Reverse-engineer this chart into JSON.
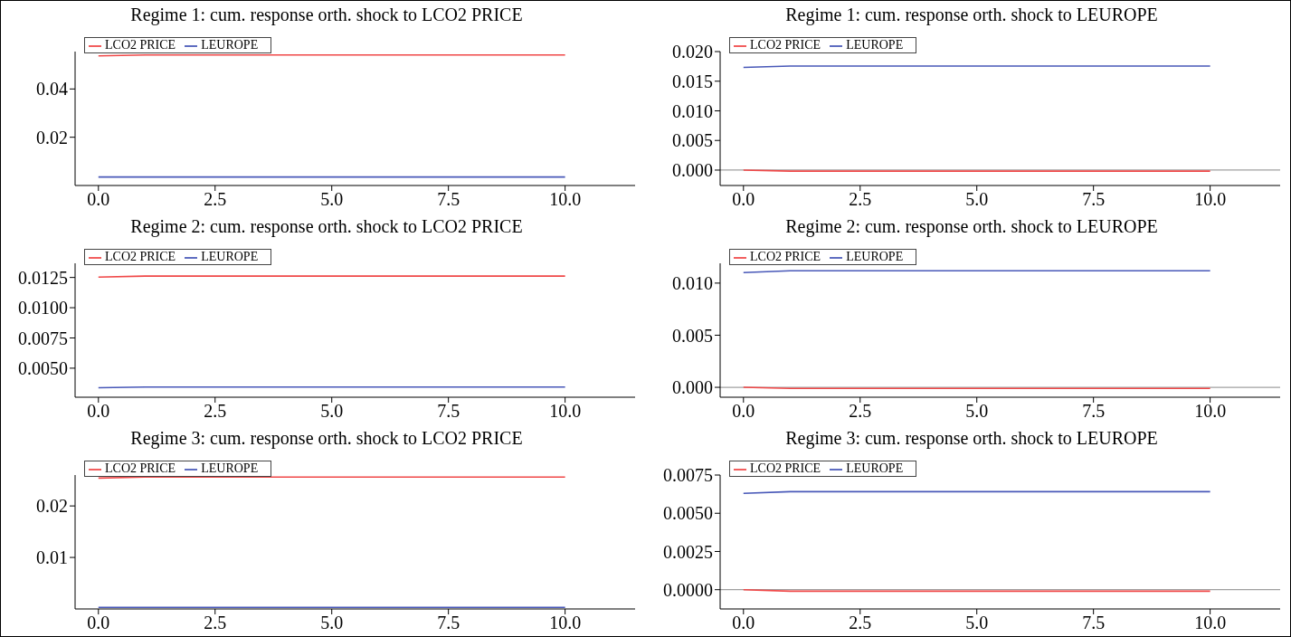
{
  "chart_data": [
    {
      "type": "line",
      "title": "Regime 1: cum. response orth. shock to LCO2 PRICE",
      "x": [
        0,
        1,
        2,
        3,
        4,
        5,
        6,
        7,
        8,
        9,
        10
      ],
      "series": [
        {
          "name": "LCO2 PRICE",
          "color": "#f04848",
          "values": [
            0.0537,
            0.0541,
            0.0541,
            0.0541,
            0.0541,
            0.0541,
            0.0541,
            0.0541,
            0.0541,
            0.0541,
            0.0541
          ]
        },
        {
          "name": "LEUROPE",
          "color": "#4858b8",
          "values": [
            0.0035,
            0.0035,
            0.0035,
            0.0035,
            0.0035,
            0.0035,
            0.0035,
            0.0035,
            0.0035,
            0.0035,
            0.0035
          ]
        }
      ],
      "xlim": [
        -0.5,
        11.5
      ],
      "xticks": [
        {
          "value": 0,
          "label": "0.0"
        },
        {
          "value": 2.5,
          "label": "2.5"
        },
        {
          "value": 5,
          "label": "5.0"
        },
        {
          "value": 7.5,
          "label": "7.5"
        },
        {
          "value": 10,
          "label": "10.0"
        }
      ],
      "ylim": [
        0,
        0.0555
      ],
      "yticks": [
        0.02,
        0.04
      ],
      "legend": "top left",
      "grid": false
    },
    {
      "type": "line",
      "title": "Regime 1: cum. response orth. shock to LEUROPE",
      "x": [
        0,
        1,
        2,
        3,
        4,
        5,
        6,
        7,
        8,
        9,
        10
      ],
      "series": [
        {
          "name": "LCO2 PRICE",
          "color": "#f04848",
          "values": [
            0,
            -0.00017,
            -0.00017,
            -0.00017,
            -0.00017,
            -0.00017,
            -0.00017,
            -0.00017,
            -0.00017,
            -0.00017,
            -0.00017
          ]
        },
        {
          "name": "LEUROPE",
          "color": "#4858b8",
          "values": [
            0.01733,
            0.01756,
            0.01756,
            0.01756,
            0.01756,
            0.01756,
            0.01756,
            0.01756,
            0.01756,
            0.01756,
            0.01756
          ]
        }
      ],
      "xlim": [
        -0.5,
        11.5
      ],
      "xticks": [
        {
          "value": 0,
          "label": "0.0"
        },
        {
          "value": 2.5,
          "label": "2.5"
        },
        {
          "value": 5,
          "label": "5.0"
        },
        {
          "value": 7.5,
          "label": "7.5"
        },
        {
          "value": 10,
          "label": "10.0"
        }
      ],
      "ylim": [
        -0.0026,
        0.02
      ],
      "yticks": [
        {
          "value": 0,
          "label": "0.000"
        },
        {
          "value": 0.005,
          "label": "0.005"
        },
        {
          "value": 0.01,
          "label": "0.010"
        },
        {
          "value": 0.015,
          "label": "0.015"
        },
        {
          "value": 0.02,
          "label": "0.020"
        }
      ],
      "ref_lines": [
        {
          "axis": "y",
          "value": 0,
          "color": "#a0a0a0"
        }
      ],
      "legend": "top left",
      "grid": false
    },
    {
      "type": "line",
      "title": "Regime 2: cum. response orth. shock to LCO2 PRICE",
      "x": [
        0,
        1,
        2,
        3,
        4,
        5,
        6,
        7,
        8,
        9,
        10
      ],
      "series": [
        {
          "name": "LCO2 PRICE",
          "color": "#f04848",
          "values": [
            0.01253,
            0.01261,
            0.01261,
            0.01261,
            0.01261,
            0.01261,
            0.01261,
            0.01261,
            0.01261,
            0.01261,
            0.01261
          ]
        },
        {
          "name": "LEUROPE",
          "color": "#4858b8",
          "values": [
            0.00339,
            0.00344,
            0.00344,
            0.00344,
            0.00344,
            0.00344,
            0.00344,
            0.00344,
            0.00344,
            0.00344,
            0.00344
          ]
        }
      ],
      "xlim": [
        -0.5,
        11.5
      ],
      "xticks": [
        {
          "value": 0,
          "label": "0.0"
        },
        {
          "value": 2.5,
          "label": "2.5"
        },
        {
          "value": 5,
          "label": "5.0"
        },
        {
          "value": 7.5,
          "label": "7.5"
        },
        {
          "value": 10,
          "label": "10.0"
        }
      ],
      "ylim": [
        0.0026,
        0.01367
      ],
      "yticks": [
        {
          "value": 0.005,
          "label": "0.0050"
        },
        {
          "value": 0.0075,
          "label": "0.0075"
        },
        {
          "value": 0.01,
          "label": "0.0100"
        },
        {
          "value": 0.0125,
          "label": "0.0125"
        }
      ],
      "legend": "top left",
      "grid": false
    },
    {
      "type": "line",
      "title": "Regime 2: cum. response orth. shock to LEUROPE",
      "x": [
        0,
        1,
        2,
        3,
        4,
        5,
        6,
        7,
        8,
        9,
        10
      ],
      "series": [
        {
          "name": "LCO2 PRICE",
          "color": "#f04848",
          "values": [
            0,
            -0.0001,
            -0.0001,
            -0.0001,
            -0.0001,
            -0.0001,
            -0.0001,
            -0.0001,
            -0.0001,
            -0.0001,
            -0.0001
          ]
        },
        {
          "name": "LEUROPE",
          "color": "#4858b8",
          "values": [
            0.01101,
            0.01118,
            0.01118,
            0.01118,
            0.01118,
            0.01118,
            0.01118,
            0.01118,
            0.01118,
            0.01118,
            0.01118
          ]
        }
      ],
      "xlim": [
        -0.5,
        11.5
      ],
      "xticks": [
        {
          "value": 0,
          "label": "0.0"
        },
        {
          "value": 2.5,
          "label": "2.5"
        },
        {
          "value": 5,
          "label": "5.0"
        },
        {
          "value": 7.5,
          "label": "7.5"
        },
        {
          "value": 10,
          "label": "10.0"
        }
      ],
      "ylim": [
        -0.00095,
        0.0119
      ],
      "yticks": [
        {
          "value": 0,
          "label": "0.000"
        },
        {
          "value": 0.005,
          "label": "0.005"
        },
        {
          "value": 0.01,
          "label": "0.010"
        }
      ],
      "ref_lines": [
        {
          "axis": "y",
          "value": 0,
          "color": "#a0a0a0"
        }
      ],
      "legend": "top left",
      "grid": false
    },
    {
      "type": "line",
      "title": "Regime 3: cum. response orth. shock to LCO2 PRICE",
      "x": [
        0,
        1,
        2,
        3,
        4,
        5,
        6,
        7,
        8,
        9,
        10
      ],
      "series": [
        {
          "name": "LCO2 PRICE",
          "color": "#f04848",
          "values": [
            0.0254,
            0.0256,
            0.0256,
            0.0256,
            0.0256,
            0.0256,
            0.0256,
            0.0256,
            0.0256,
            0.0256,
            0.0256
          ]
        },
        {
          "name": "LEUROPE",
          "color": "#4858b8",
          "values": [
            0.0003,
            0.0003,
            0.0003,
            0.0003,
            0.0003,
            0.0003,
            0.0003,
            0.0003,
            0.0003,
            0.0003,
            0.0003
          ]
        }
      ],
      "xlim": [
        -0.5,
        11.5
      ],
      "xticks": [
        {
          "value": 0,
          "label": "0.0"
        },
        {
          "value": 2.5,
          "label": "2.5"
        },
        {
          "value": 5,
          "label": "5.0"
        },
        {
          "value": 7.5,
          "label": "7.5"
        },
        {
          "value": 10,
          "label": "10.0"
        }
      ],
      "ylim": [
        0,
        0.026
      ],
      "yticks": [
        0.01,
        0.02
      ],
      "legend": "top left",
      "grid": false
    },
    {
      "type": "line",
      "title": "Regime 3: cum. response orth. shock to LEUROPE",
      "x": [
        0,
        1,
        2,
        3,
        4,
        5,
        6,
        7,
        8,
        9,
        10
      ],
      "series": [
        {
          "name": "LCO2 PRICE",
          "color": "#f04848",
          "values": [
            0,
            -0.0001,
            -0.0001,
            -0.0001,
            -0.0001,
            -0.0001,
            -0.0001,
            -0.0001,
            -0.0001,
            -0.0001,
            -0.0001
          ]
        },
        {
          "name": "LEUROPE",
          "color": "#4858b8",
          "values": [
            0.0063,
            0.00641,
            0.00641,
            0.00641,
            0.00641,
            0.00641,
            0.00641,
            0.00641,
            0.00641,
            0.00641,
            0.00641
          ]
        }
      ],
      "xlim": [
        -0.5,
        11.5
      ],
      "xticks": [
        {
          "value": 0,
          "label": "0.0"
        },
        {
          "value": 2.5,
          "label": "2.5"
        },
        {
          "value": 5,
          "label": "5.0"
        },
        {
          "value": 7.5,
          "label": "7.5"
        },
        {
          "value": 10,
          "label": "10.0"
        }
      ],
      "ylim": [
        -0.00126,
        0.0075
      ],
      "yticks": [
        {
          "value": 0,
          "label": "0.0000"
        },
        {
          "value": 0.0025,
          "label": "0.0025"
        },
        {
          "value": 0.005,
          "label": "0.0050"
        },
        {
          "value": 0.0075,
          "label": "0.0075"
        }
      ],
      "ref_lines": [
        {
          "axis": "y",
          "value": 0,
          "color": "#a0a0a0"
        }
      ],
      "legend": "top left",
      "grid": false
    }
  ]
}
